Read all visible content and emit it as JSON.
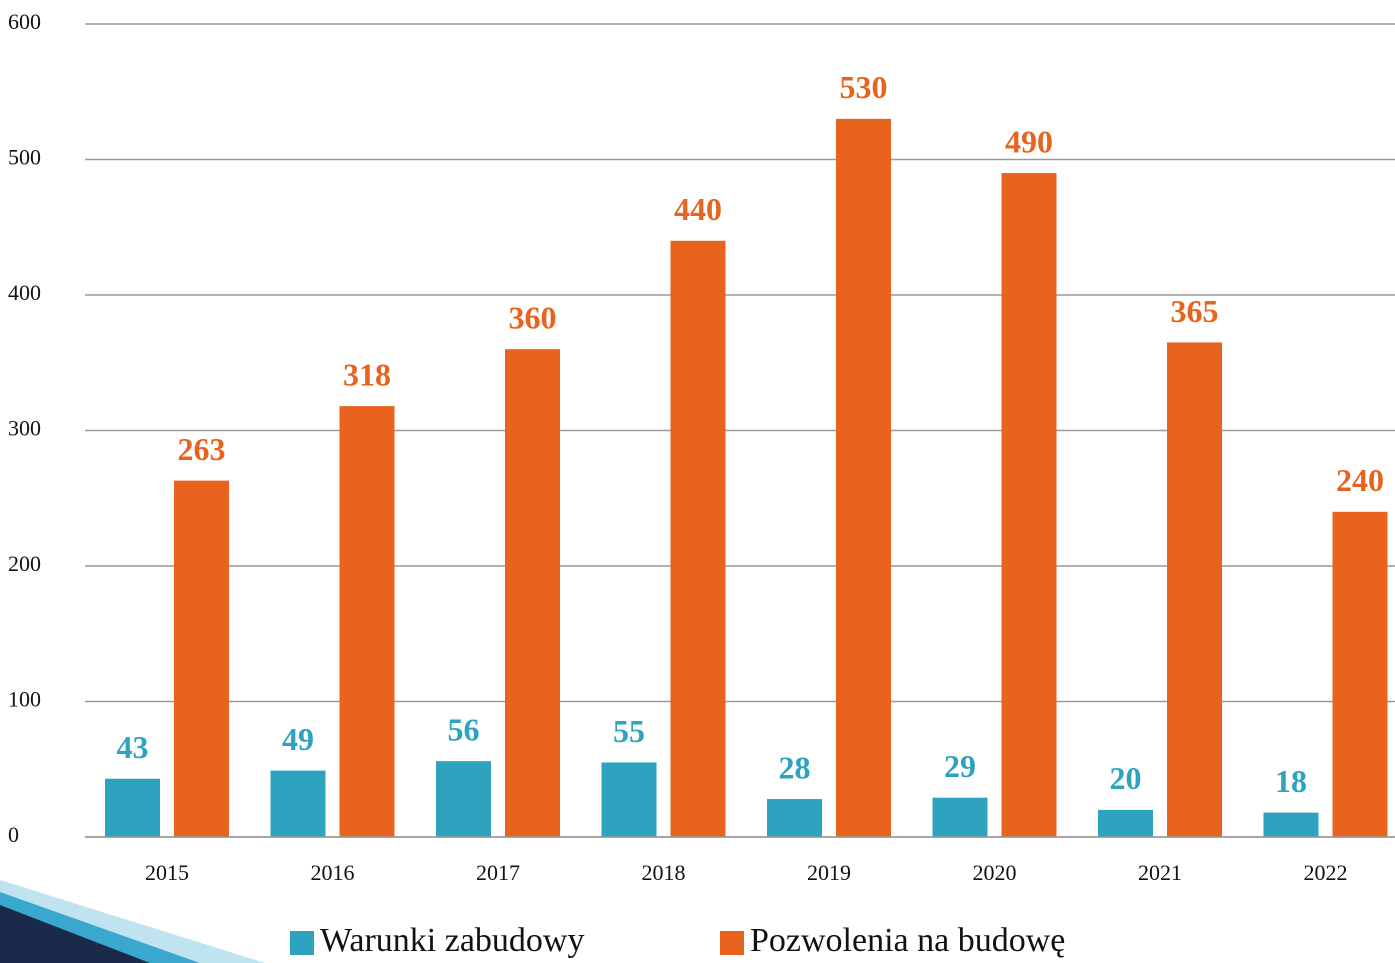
{
  "chart_data": {
    "type": "bar",
    "categories": [
      "2015",
      "2016",
      "2017",
      "2018",
      "2019",
      "2020",
      "2021",
      "2022"
    ],
    "series": [
      {
        "name": "Warunki zabudowy",
        "color": "#2ea3c0",
        "values": [
          43,
          49,
          56,
          55,
          28,
          29,
          20,
          18
        ]
      },
      {
        "name": "Pozwolenia na budowę",
        "color": "#e8641e",
        "values": [
          263,
          318,
          360,
          440,
          530,
          490,
          365,
          240
        ]
      }
    ],
    "ylim": [
      0,
      600
    ],
    "yticks": [
      0,
      100,
      200,
      300,
      400,
      500,
      600
    ],
    "grid": true,
    "legend": "bottom"
  }
}
